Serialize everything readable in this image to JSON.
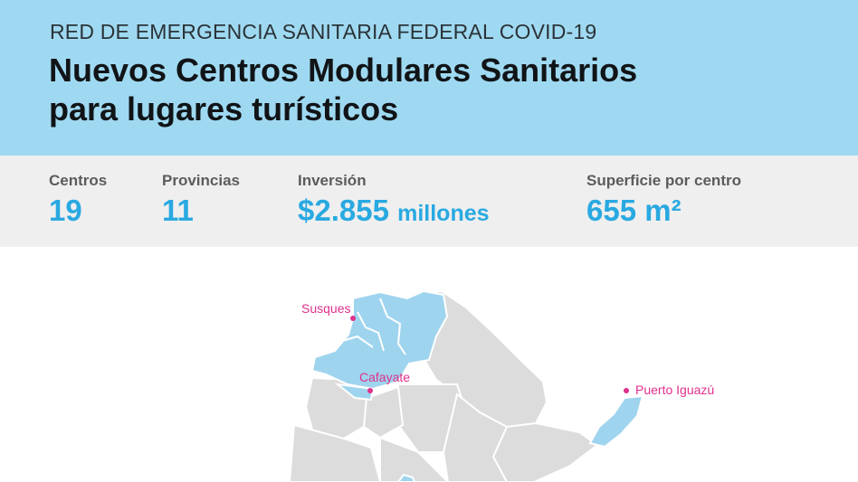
{
  "header": {
    "kicker": "RED DE EMERGENCIA SANITARIA FEDERAL COVID-19",
    "title_line1": "Nuevos Centros Modulares Sanitarios",
    "title_line2": "para lugares turísticos"
  },
  "stats": [
    {
      "label": "Centros",
      "value": "19",
      "unit": ""
    },
    {
      "label": "Provincias",
      "value": "11",
      "unit": ""
    },
    {
      "label": "Inversión",
      "value": "$2.855",
      "unit": "millones"
    },
    {
      "label": "Superficie por centro",
      "value": "655 m²",
      "unit": ""
    }
  ],
  "map": {
    "locations": [
      "Susques",
      "Cafayate",
      "Puerto Iguazú"
    ],
    "colors": {
      "highlight": "#9fd4ee",
      "province": "#dcdcdc",
      "border": "#ffffff",
      "marker": "#e0308c"
    }
  }
}
